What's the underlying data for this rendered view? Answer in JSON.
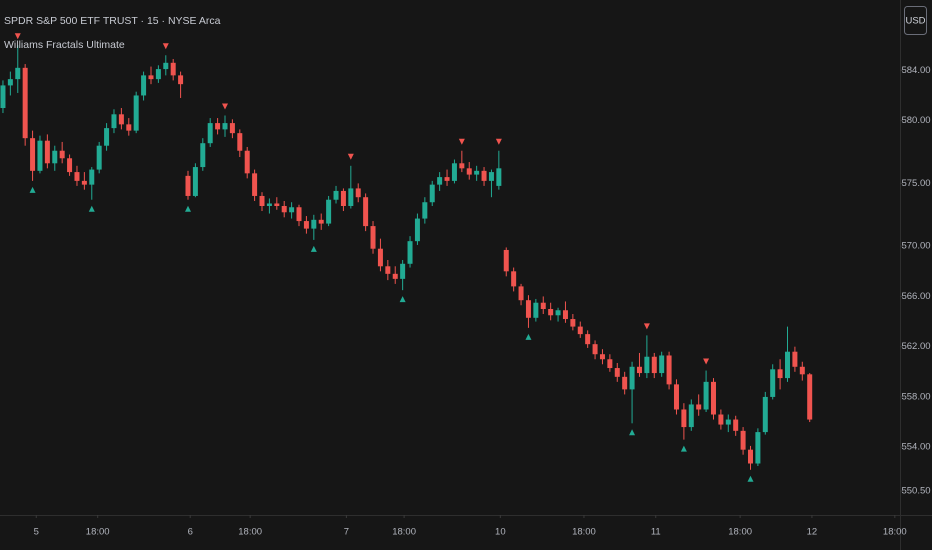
{
  "header": {
    "title": "SPDR S&P 500 ETF TRUST · 15 · NYSE Arca",
    "indicator": "Williams Fractals Ultimate",
    "currency": "USD"
  },
  "chart_data": {
    "type": "candlestick",
    "up_color": "#22ab94",
    "down_color": "#f0544f",
    "xlim": [
      -0.4,
      121.2
    ],
    "ylim": [
      548.6,
      589.6
    ],
    "grid": false,
    "xticks": [
      {
        "value": 4.5,
        "label": "5"
      },
      {
        "value": 12.8,
        "label": "18:00"
      },
      {
        "value": 25.3,
        "label": "6"
      },
      {
        "value": 33.4,
        "label": "18:00"
      },
      {
        "value": 46.4,
        "label": "7"
      },
      {
        "value": 54.2,
        "label": "18:00"
      },
      {
        "value": 67.2,
        "label": "10"
      },
      {
        "value": 78.5,
        "label": "18:00"
      },
      {
        "value": 88.2,
        "label": "11"
      },
      {
        "value": 99.6,
        "label": "18:00"
      },
      {
        "value": 109.3,
        "label": "12"
      },
      {
        "value": 120.5,
        "label": "18:00"
      }
    ],
    "yticks": [
      {
        "value": 584,
        "label": "584.00"
      },
      {
        "value": 580,
        "label": "580.00"
      },
      {
        "value": 575,
        "label": "575.00"
      },
      {
        "value": 570,
        "label": "570.00"
      },
      {
        "value": 566,
        "label": "566.00"
      },
      {
        "value": 562,
        "label": "562.00"
      },
      {
        "value": 558,
        "label": "558.00"
      },
      {
        "value": 554,
        "label": "554.00"
      },
      {
        "value": 550.5,
        "label": "550.50"
      }
    ],
    "ohlc": [
      [
        581.0,
        583.2,
        580.6,
        582.8
      ],
      [
        582.8,
        583.9,
        582.0,
        583.3
      ],
      [
        583.3,
        586.0,
        582.2,
        584.2
      ],
      [
        584.2,
        584.5,
        578.0,
        578.6
      ],
      [
        578.6,
        579.2,
        575.2,
        576.0
      ],
      [
        576.0,
        578.8,
        575.8,
        578.4
      ],
      [
        578.4,
        578.9,
        576.2,
        576.6
      ],
      [
        576.6,
        578.0,
        576.0,
        577.6
      ],
      [
        577.6,
        578.3,
        576.6,
        577.0
      ],
      [
        577.0,
        577.3,
        575.6,
        575.9
      ],
      [
        575.9,
        576.4,
        574.8,
        575.2
      ],
      [
        575.2,
        575.9,
        574.5,
        574.9
      ],
      [
        574.9,
        576.3,
        573.7,
        576.1
      ],
      [
        576.1,
        578.3,
        575.8,
        578.0
      ],
      [
        578.0,
        579.8,
        577.6,
        579.4
      ],
      [
        579.4,
        580.9,
        579.0,
        580.5
      ],
      [
        580.5,
        581.0,
        579.3,
        579.7
      ],
      [
        579.7,
        580.2,
        578.8,
        579.2
      ],
      [
        579.2,
        582.3,
        579.0,
        582.0
      ],
      [
        582.0,
        583.9,
        581.6,
        583.6
      ],
      [
        583.6,
        584.3,
        582.9,
        583.3
      ],
      [
        583.3,
        584.4,
        583.0,
        584.1
      ],
      [
        584.1,
        585.2,
        583.6,
        584.6
      ],
      [
        584.6,
        584.9,
        583.2,
        583.6
      ],
      [
        583.6,
        583.9,
        581.8,
        582.9
      ],
      [
        575.6,
        576.0,
        573.7,
        574.0
      ],
      [
        574.0,
        576.6,
        573.9,
        576.3
      ],
      [
        576.3,
        578.6,
        576.0,
        578.2
      ],
      [
        578.2,
        580.2,
        577.9,
        579.8
      ],
      [
        579.8,
        580.2,
        578.9,
        579.3
      ],
      [
        579.3,
        580.4,
        578.7,
        579.8
      ],
      [
        579.8,
        580.1,
        578.6,
        579.0
      ],
      [
        579.0,
        579.3,
        577.1,
        577.6
      ],
      [
        577.6,
        577.9,
        575.4,
        575.8
      ],
      [
        575.8,
        576.1,
        573.6,
        574.0
      ],
      [
        574.0,
        574.3,
        572.8,
        573.2
      ],
      [
        573.2,
        573.8,
        572.6,
        573.4
      ],
      [
        573.4,
        573.9,
        572.9,
        573.2
      ],
      [
        573.2,
        573.6,
        572.3,
        572.7
      ],
      [
        572.7,
        573.5,
        572.2,
        573.1
      ],
      [
        573.1,
        573.3,
        571.6,
        572.0
      ],
      [
        572.0,
        572.4,
        571.0,
        571.4
      ],
      [
        571.4,
        572.5,
        570.5,
        572.1
      ],
      [
        572.1,
        572.6,
        571.3,
        571.8
      ],
      [
        571.8,
        574.0,
        571.6,
        573.7
      ],
      [
        573.7,
        574.8,
        573.4,
        574.4
      ],
      [
        574.4,
        574.6,
        572.8,
        573.2
      ],
      [
        573.2,
        576.4,
        573.0,
        574.6
      ],
      [
        574.6,
        575.0,
        573.5,
        573.9
      ],
      [
        573.9,
        574.2,
        571.2,
        571.6
      ],
      [
        571.6,
        572.0,
        569.4,
        569.8
      ],
      [
        569.8,
        570.6,
        568.0,
        568.4
      ],
      [
        568.4,
        568.9,
        567.3,
        567.8
      ],
      [
        567.8,
        568.4,
        567.0,
        567.4
      ],
      [
        567.4,
        568.9,
        566.5,
        568.6
      ],
      [
        568.6,
        570.8,
        568.3,
        570.4
      ],
      [
        570.4,
        572.6,
        570.1,
        572.2
      ],
      [
        572.2,
        573.9,
        571.8,
        573.5
      ],
      [
        573.5,
        575.2,
        573.2,
        574.9
      ],
      [
        574.9,
        575.9,
        574.4,
        575.5
      ],
      [
        575.5,
        576.1,
        574.8,
        575.2
      ],
      [
        575.2,
        576.9,
        575.0,
        576.6
      ],
      [
        576.6,
        577.6,
        575.9,
        576.2
      ],
      [
        576.2,
        576.7,
        575.3,
        575.7
      ],
      [
        575.7,
        576.4,
        575.2,
        576.0
      ],
      [
        576.0,
        576.3,
        574.8,
        575.2
      ],
      [
        575.2,
        576.1,
        573.9,
        575.9
      ],
      [
        574.8,
        577.6,
        574.5,
        576.2
      ],
      [
        569.7,
        569.9,
        567.6,
        568.0
      ],
      [
        568.0,
        568.3,
        566.4,
        566.8
      ],
      [
        566.8,
        567.0,
        565.3,
        565.7
      ],
      [
        565.7,
        566.1,
        563.5,
        564.3
      ],
      [
        564.3,
        565.8,
        564.0,
        565.5
      ],
      [
        565.5,
        566.0,
        564.6,
        565.0
      ],
      [
        565.0,
        565.5,
        564.1,
        564.5
      ],
      [
        564.5,
        565.1,
        564.0,
        564.9
      ],
      [
        564.9,
        565.6,
        563.9,
        564.2
      ],
      [
        564.2,
        564.6,
        563.3,
        563.6
      ],
      [
        563.6,
        564.0,
        562.7,
        563.0
      ],
      [
        563.0,
        563.3,
        561.9,
        562.2
      ],
      [
        562.2,
        562.5,
        561.0,
        561.4
      ],
      [
        561.4,
        561.8,
        560.6,
        561.0
      ],
      [
        561.0,
        561.4,
        560.0,
        560.3
      ],
      [
        560.3,
        560.7,
        559.2,
        559.6
      ],
      [
        559.6,
        560.0,
        558.2,
        558.6
      ],
      [
        558.6,
        560.8,
        555.9,
        560.4
      ],
      [
        560.4,
        561.5,
        559.6,
        559.9
      ],
      [
        559.9,
        562.9,
        559.5,
        561.2
      ],
      [
        561.2,
        561.5,
        559.5,
        559.9
      ],
      [
        559.9,
        561.6,
        559.6,
        561.3
      ],
      [
        561.3,
        561.6,
        558.6,
        559.0
      ],
      [
        559.0,
        559.4,
        556.6,
        557.0
      ],
      [
        557.0,
        557.5,
        554.6,
        555.6
      ],
      [
        555.6,
        557.8,
        555.3,
        557.4
      ],
      [
        557.4,
        558.2,
        556.5,
        557.0
      ],
      [
        557.0,
        560.1,
        556.8,
        559.2
      ],
      [
        559.2,
        559.5,
        556.2,
        556.6
      ],
      [
        556.6,
        557.0,
        555.4,
        555.8
      ],
      [
        555.8,
        556.6,
        555.2,
        556.2
      ],
      [
        556.2,
        556.5,
        554.9,
        555.3
      ],
      [
        555.3,
        555.6,
        553.4,
        553.8
      ],
      [
        553.8,
        554.1,
        552.2,
        552.7
      ],
      [
        552.7,
        555.5,
        552.5,
        555.2
      ],
      [
        555.2,
        558.4,
        555.0,
        558.0
      ],
      [
        558.0,
        560.6,
        557.8,
        560.2
      ],
      [
        560.2,
        561.0,
        558.6,
        559.5
      ],
      [
        559.5,
        563.6,
        559.2,
        561.6
      ],
      [
        561.6,
        562.0,
        560.0,
        560.4
      ],
      [
        560.4,
        560.8,
        559.3,
        559.8
      ],
      [
        559.8,
        559.9,
        556.0,
        556.2
      ]
    ],
    "fractal_highs": [
      2,
      22,
      30,
      47,
      62,
      67,
      87,
      95
    ],
    "fractal_lows": [
      4,
      12,
      25,
      42,
      54,
      71,
      85,
      92,
      101
    ]
  }
}
